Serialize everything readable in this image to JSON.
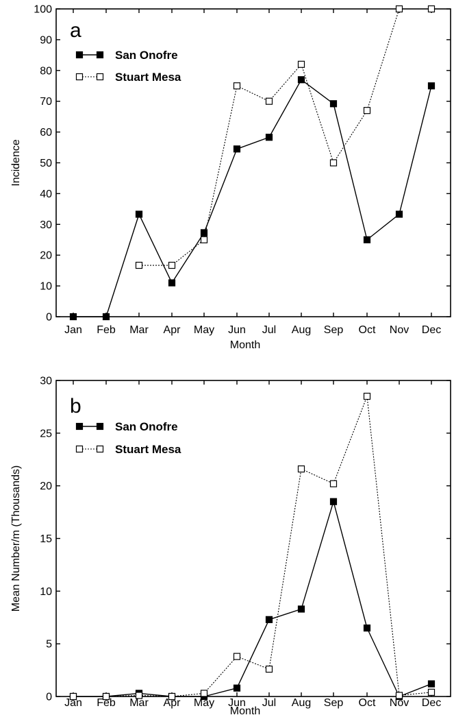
{
  "chart_data": [
    {
      "type": "line",
      "panel_label": "a",
      "xlabel": "Month",
      "ylabel": "Incidence",
      "ylim": [
        0,
        100
      ],
      "yticks": [
        0,
        10,
        20,
        30,
        40,
        50,
        60,
        70,
        80,
        90,
        100
      ],
      "categories": [
        "Jan",
        "Feb",
        "Mar",
        "Apr",
        "May",
        "Jun",
        "Jul",
        "Aug",
        "Sep",
        "Oct",
        "Nov",
        "Dec"
      ],
      "legend_position": "top-left",
      "grid": false,
      "series": [
        {
          "name": "San Onofre",
          "marker": "filled-square",
          "line": "solid",
          "color": "#000000",
          "values": [
            0,
            0,
            33.3,
            11,
            27.3,
            54.5,
            58.3,
            77,
            69.2,
            25,
            33.3,
            75
          ]
        },
        {
          "name": "Stuart Mesa",
          "marker": "open-square",
          "line": "dotted",
          "color": "#000000",
          "values": [
            null,
            null,
            16.7,
            16.7,
            25,
            75,
            70,
            82,
            50,
            67,
            100,
            100
          ]
        }
      ]
    },
    {
      "type": "line",
      "panel_label": "b",
      "xlabel": "Month",
      "ylabel": "Mean Number/m (Thousands)",
      "ylim": [
        0,
        30
      ],
      "yticks": [
        0,
        5,
        10,
        15,
        20,
        25,
        30
      ],
      "categories": [
        "Jan",
        "Feb",
        "Mar",
        "Apr",
        "May",
        "Jun",
        "Jul",
        "Aug",
        "Sep",
        "Oct",
        "Nov",
        "Dec"
      ],
      "legend_position": "top-left",
      "grid": false,
      "series": [
        {
          "name": "San Onofre",
          "marker": "filled-square",
          "line": "solid",
          "color": "#000000",
          "values": [
            0,
            0,
            0.3,
            0,
            0,
            0.8,
            7.3,
            8.3,
            18.5,
            6.5,
            0,
            1.2
          ]
        },
        {
          "name": "Stuart Mesa",
          "marker": "open-square",
          "line": "dotted",
          "color": "#000000",
          "values": [
            0,
            0,
            0.1,
            0,
            0.3,
            3.8,
            2.6,
            21.6,
            20.2,
            28.5,
            0.1,
            0.4
          ]
        }
      ]
    }
  ]
}
